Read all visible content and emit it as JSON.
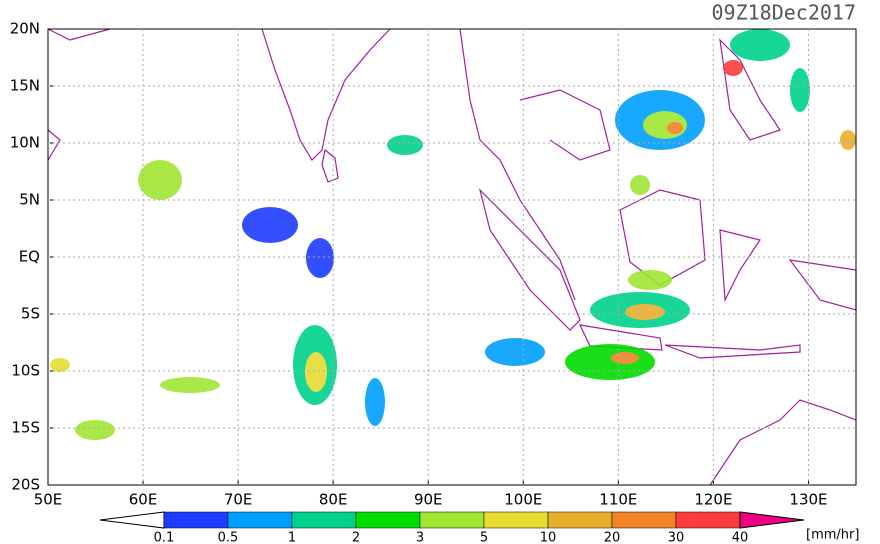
{
  "title": "09Z18Dec2017",
  "lon_axis": {
    "lim": [
      50,
      135
    ],
    "ticks": [
      {
        "value": 50,
        "label": "50E"
      },
      {
        "value": 60,
        "label": "60E"
      },
      {
        "value": 70,
        "label": "70E"
      },
      {
        "value": 80,
        "label": "80E"
      },
      {
        "value": 90,
        "label": "90E"
      },
      {
        "value": 100,
        "label": "100E"
      },
      {
        "value": 110,
        "label": "110E"
      },
      {
        "value": 120,
        "label": "120E"
      },
      {
        "value": 130,
        "label": "130E"
      }
    ]
  },
  "lat_axis": {
    "lim": [
      -20,
      20
    ],
    "ticks": [
      {
        "value": 20,
        "label": "20N"
      },
      {
        "value": 15,
        "label": "15N"
      },
      {
        "value": 10,
        "label": "10N"
      },
      {
        "value": 5,
        "label": "5N"
      },
      {
        "value": 0,
        "label": "EQ"
      },
      {
        "value": -5,
        "label": "5S"
      },
      {
        "value": -10,
        "label": "10S"
      },
      {
        "value": -15,
        "label": "15S"
      },
      {
        "value": -20,
        "label": "20S"
      }
    ]
  },
  "grid": true,
  "colorbar": {
    "levels": [
      0.1,
      0.5,
      1,
      2,
      3,
      5,
      10,
      20,
      30,
      40
    ],
    "colors": [
      "#ffffff",
      "#1e3cff",
      "#00a0ff",
      "#00d28c",
      "#00dc00",
      "#a0e632",
      "#e6dc32",
      "#e6af2d",
      "#f08228",
      "#fa3c3c",
      "#f00082"
    ],
    "unit": "[mm/hr]"
  }
}
